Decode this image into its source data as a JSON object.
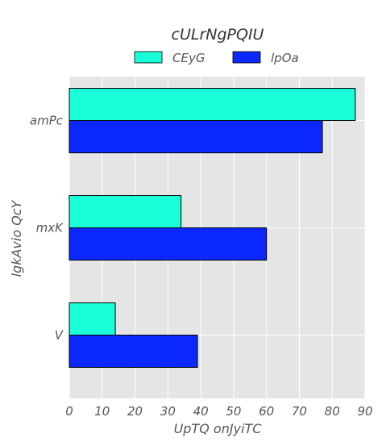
{
  "chart_data": {
    "type": "bar",
    "orientation": "horizontal",
    "title": "cULrNgPQIU",
    "xlabel": "UpTQ onJyiTC",
    "ylabel": "lgkAvio QcY",
    "categories": [
      "amPc",
      "mxK",
      "V"
    ],
    "series": [
      {
        "name": "CEyG",
        "color": "#1affd9",
        "values": [
          87,
          34,
          14
        ]
      },
      {
        "name": "lpOa",
        "color": "#0a28ff",
        "values": [
          77,
          60,
          39
        ]
      }
    ],
    "xlim": [
      0,
      90
    ],
    "xticks": [
      "0",
      "10",
      "20",
      "30",
      "40",
      "50",
      "60",
      "70",
      "80",
      "90"
    ],
    "grid": true,
    "legend_position": "top"
  },
  "colors": {
    "plot_background": "#e5e5e5",
    "grid": "#ffffff",
    "bar_edge": "#000000"
  }
}
